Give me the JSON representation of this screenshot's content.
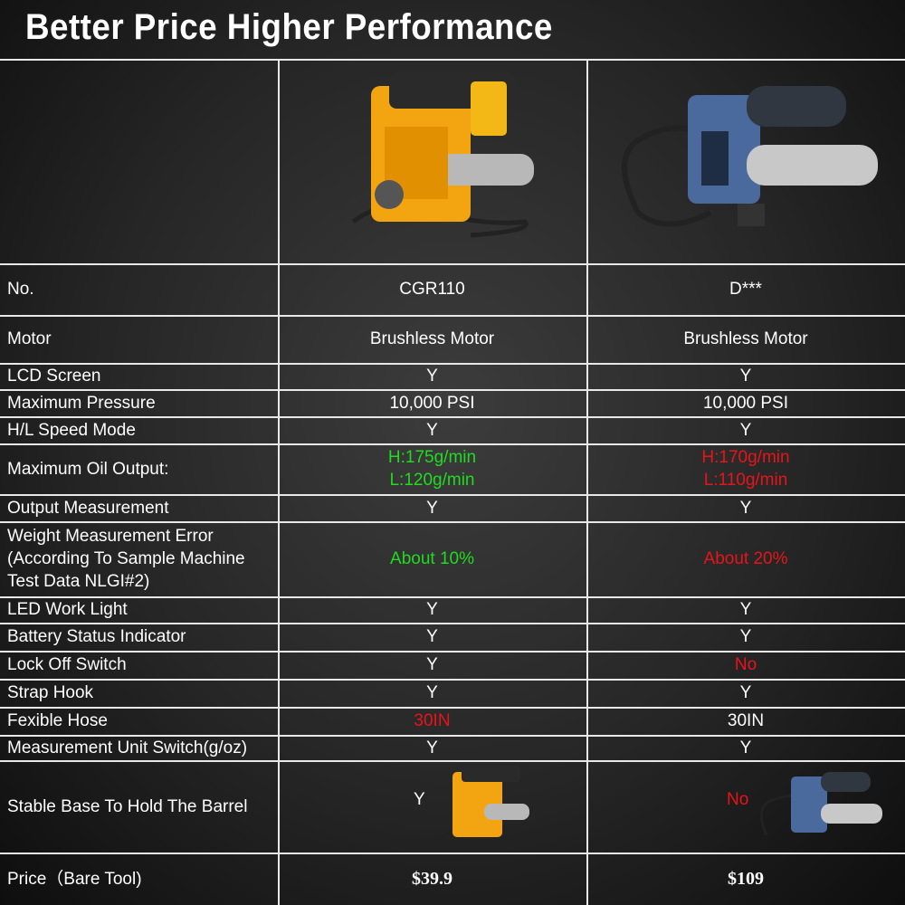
{
  "header": {
    "title": "Better Price Higher Performance"
  },
  "table": {
    "rows": [
      {
        "label": "No.",
        "cells": [
          "CGR110",
          "D***"
        ]
      },
      {
        "label": "Motor",
        "cells": [
          "Brushless Motor",
          "Brushless Motor"
        ]
      },
      {
        "label": "LCD Screen",
        "cells": [
          "Y",
          "Y"
        ]
      },
      {
        "label": "Maximum Pressure",
        "cells": [
          "10,000 PSI",
          "10,000 PSI"
        ]
      },
      {
        "label": "H/L Speed Mode",
        "cells": [
          "Y",
          "Y"
        ]
      },
      {
        "label": "Maximum Oil Output:",
        "cells": [
          {
            "text": "H:175g/min\nL:120g/min",
            "color": "#1fdc1f"
          },
          {
            "text": "H:170g/min\nL:110g/min",
            "color": "#e8141a"
          }
        ]
      },
      {
        "label": "Output Measurement",
        "cells": [
          "Y",
          "Y"
        ]
      },
      {
        "label": "Weight Measurement Error\n(According To Sample Machine\nTest Data NLGI#2)",
        "cells": [
          {
            "text": "About 10%",
            "color": "#1fdc1f"
          },
          {
            "text": "About 20%",
            "color": "#e8141a"
          }
        ]
      },
      {
        "label": "LED Work Light",
        "cells": [
          "Y",
          "Y"
        ]
      },
      {
        "label": "Battery Status Indicator",
        "cells": [
          "Y",
          "Y"
        ]
      },
      {
        "label": "Lock Off Switch",
        "cells": [
          "Y",
          {
            "text": "No",
            "color": "#e8141a"
          }
        ]
      },
      {
        "label": "Strap Hook",
        "cells": [
          "Y",
          "Y"
        ]
      },
      {
        "label": "Fexible Hose",
        "cells": [
          {
            "text": "30IN",
            "color": "#e8141a"
          },
          "30IN"
        ]
      },
      {
        "label": "Measurement Unit Switch(g/oz)",
        "cells": [
          "Y",
          "Y"
        ]
      },
      {
        "label": "Stable Base To Hold The Barrel",
        "cells": [
          "Y",
          {
            "text": "No",
            "color": "#e8141a"
          }
        ]
      },
      {
        "label": "Price（Bare Tool)",
        "cells": [
          "$39.9",
          "$109"
        ],
        "bold": true
      }
    ]
  }
}
